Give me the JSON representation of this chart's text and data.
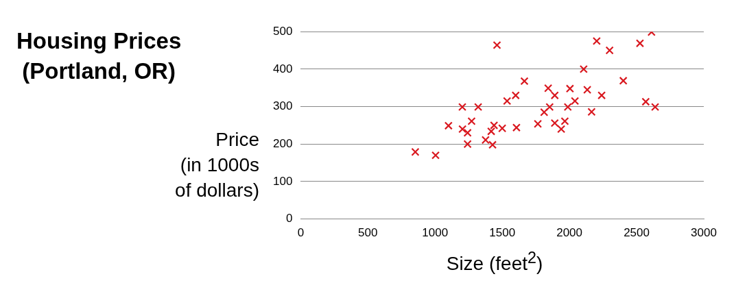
{
  "chart_data": {
    "type": "scatter",
    "title": "Housing Prices\n(Portland, OR)",
    "xlabel": "Size (feet$^{2}$)",
    "ylabel": "Price\n(in 1000s\nof dollars)",
    "xlim": [
      0,
      3000
    ],
    "xticks": [
      0,
      500,
      1000,
      1500,
      2000,
      2500,
      3000
    ],
    "ylim": [
      0,
      500
    ],
    "yticks": [
      0,
      100,
      200,
      300,
      400,
      500
    ],
    "grid": "y",
    "marker": "cross",
    "series": [
      {
        "color": "#d9181f",
        "x": [
          1461,
          1665,
          1203,
          1321,
          1100,
          1272,
          1204,
          1242,
          1242,
          853,
          1004,
          1376,
          1428,
          1418,
          1439,
          1500,
          1606,
          1536,
          1600,
          1765,
          1812,
          1853,
          1842,
          1891,
          1891,
          1939,
          1966,
          1988,
          2004,
          2041,
          2106,
          2133,
          2165,
          2203,
          2299,
          2240,
          2401,
          2525,
          2611,
          2568,
          2638
        ],
        "values": [
          464,
          368,
          299,
          299,
          249,
          261,
          240,
          230,
          200,
          179,
          170,
          211,
          198,
          234,
          250,
          242,
          244,
          315,
          330,
          254,
          285,
          299,
          349,
          330,
          256,
          240,
          261,
          299,
          348,
          315,
          400,
          345,
          286,
          475,
          450,
          330,
          369,
          469,
          499,
          313,
          299
        ]
      }
    ]
  }
}
